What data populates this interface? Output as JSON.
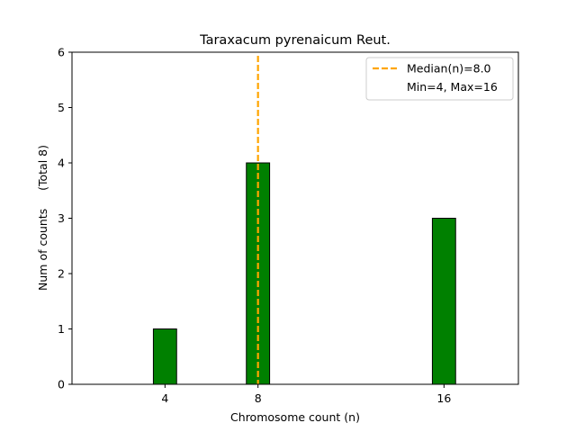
{
  "chart_data": {
    "type": "bar",
    "title": "Taraxacum pyrenaicum Reut.",
    "xlabel": "Chromosome count (n)",
    "ylabel": "Num of counts     (Total 8)",
    "x": [
      4,
      8,
      16
    ],
    "values": [
      1,
      4,
      3
    ],
    "xlim": [
      0,
      19.2
    ],
    "ylim": [
      0,
      6
    ],
    "yticks": [
      0,
      1,
      2,
      3,
      4,
      5,
      6
    ],
    "xticks": [
      4,
      8,
      16
    ],
    "bar_color": "#008000",
    "bar_edge_color": "#000000",
    "median_line": {
      "value": 8.0,
      "color": "#FFA500",
      "label": "Median(n)=8.0"
    },
    "legend": {
      "position": "top-right",
      "entries": [
        "Median(n)=8.0",
        "Min=4, Max=16"
      ]
    },
    "grid": false
  }
}
